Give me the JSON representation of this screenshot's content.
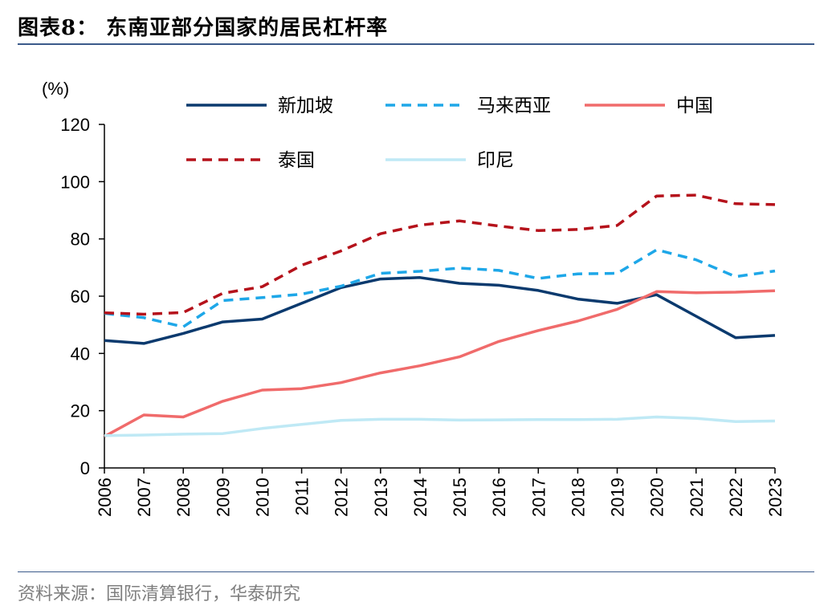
{
  "header": {
    "title": "图表8：  东南亚部分国家的居民杠杆率"
  },
  "footer": {
    "source": "资料来源：国际清算银行，华泰研究"
  },
  "chart_data": {
    "type": "line",
    "unit_label": "(%)",
    "x": [
      "2006",
      "2007",
      "2008",
      "2009",
      "2010",
      "2011",
      "2012",
      "2013",
      "2014",
      "2015",
      "2016",
      "2017",
      "2018",
      "2019",
      "2020",
      "2021",
      "2022",
      "2023"
    ],
    "ylim": [
      0,
      120
    ],
    "yticks": [
      0,
      20,
      40,
      60,
      80,
      100,
      120
    ],
    "legend_position": "top",
    "series": [
      {
        "name": "新加坡",
        "color": "#0b3a6e",
        "dash": "solid",
        "values": [
          44.5,
          43.5,
          47,
          51,
          52,
          57.5,
          63,
          66,
          66.5,
          64.5,
          63.8,
          62,
          59,
          57.5,
          60.5,
          53,
          45.5,
          46.3
        ]
      },
      {
        "name": "马来西亚",
        "color": "#1ea7e8",
        "dash": "dashed",
        "values": [
          54,
          52.5,
          49.3,
          58.5,
          59.5,
          60.7,
          63.5,
          68,
          68.7,
          69.8,
          69,
          66.2,
          67.8,
          68,
          76.2,
          72.7,
          66.8,
          68.8
        ]
      },
      {
        "name": "中国",
        "color": "#f06b6b",
        "dash": "solid",
        "values": [
          11,
          18.5,
          17.8,
          23.3,
          27.2,
          27.7,
          29.8,
          33.2,
          35.7,
          38.8,
          44.2,
          48,
          51.3,
          55.4,
          61.6,
          61.2,
          61.4,
          61.9
        ]
      },
      {
        "name": "泰国",
        "color": "#b5121b",
        "dash": "dashed",
        "values": [
          54.2,
          53.7,
          54.3,
          61,
          63.3,
          70.8,
          75.8,
          81.8,
          84.8,
          86.3,
          84.5,
          82.9,
          83.3,
          84.7,
          95,
          95.3,
          92.3,
          92
        ]
      },
      {
        "name": "印尼",
        "color": "#bfe9f5",
        "dash": "solid",
        "values": [
          11.3,
          11.5,
          11.8,
          12,
          13.8,
          15.2,
          16.6,
          17,
          17,
          16.7,
          16.8,
          16.9,
          16.9,
          17,
          17.8,
          17.3,
          16.2,
          16.4
        ]
      }
    ]
  }
}
